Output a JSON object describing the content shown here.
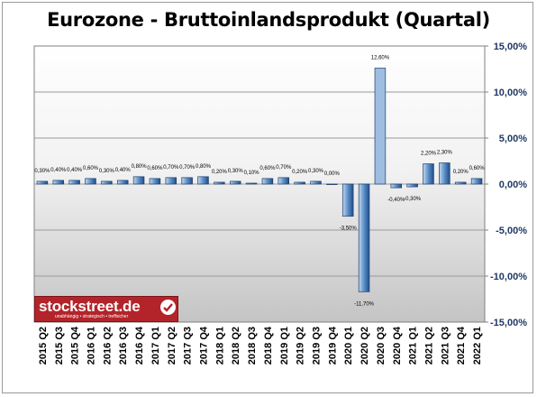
{
  "chart_data": {
    "type": "bar",
    "title": "Eurozone - Bruttoinlandsprodukt (Quartal)",
    "categories": [
      "2015 Q2",
      "2015 Q3",
      "2015 Q4",
      "2016 Q1",
      "2016 Q2",
      "2016 Q3",
      "2016 Q4",
      "2017 Q1",
      "2017 Q2",
      "2017 Q3",
      "2017 Q4",
      "2018 Q1",
      "2018 Q2",
      "2018 Q3",
      "2018 Q4",
      "2019 Q1",
      "2019 Q2",
      "2019 Q3",
      "2019 Q4",
      "2020 Q1",
      "2020 Q2",
      "2020 Q3",
      "2020 Q4",
      "2021 Q1",
      "2021 Q2",
      "2021 Q3",
      "2021 Q4",
      "2022 Q1"
    ],
    "values": [
      0.3,
      0.4,
      0.4,
      0.6,
      0.3,
      0.4,
      0.8,
      0.6,
      0.7,
      0.7,
      0.8,
      0.2,
      0.3,
      0.1,
      0.6,
      0.7,
      0.2,
      0.3,
      0.0,
      -3.5,
      -11.7,
      12.6,
      -0.4,
      -0.3,
      2.2,
      2.3,
      0.2,
      0.6
    ],
    "value_labels": [
      "0,30%",
      "0,40%",
      "0,40%",
      "0,60%",
      "0,30%",
      "0,40%",
      "0,80%",
      "0,60%",
      "0,70%",
      "0,70%",
      "0,80%",
      "0,20%",
      "0,30%",
      "0,10%",
      "0,60%",
      "0,70%",
      "0,20%",
      "0,30%",
      "0,00%",
      "-3,50%",
      "-11,70%",
      "12,60%",
      "-0,40%",
      "-0,30%",
      "2,20%",
      "2,30%",
      "0,20%",
      "0,60%"
    ],
    "y_ticks": [
      15,
      10,
      5,
      0,
      -5,
      -10,
      -15
    ],
    "y_tick_labels": [
      "15,00%",
      "10,00%",
      "5,00%",
      "0,00%",
      "-5,00%",
      "-10,00%",
      "-15,00%"
    ],
    "ylim": [
      -15,
      15
    ],
    "y_axis_position": "right",
    "grid": true,
    "xlabel": "",
    "ylabel": "",
    "colors": {
      "bar": "#3a6ea5",
      "bar_light": "#a9c4e2",
      "axis_text": "#1f3864",
      "plot_bg_top": "#ffffff",
      "plot_bg_bottom": "#c8c8c8"
    }
  },
  "watermark": {
    "brand": "stockstreet.de",
    "tagline": "unabhängig • strategisch • treffsicher"
  }
}
